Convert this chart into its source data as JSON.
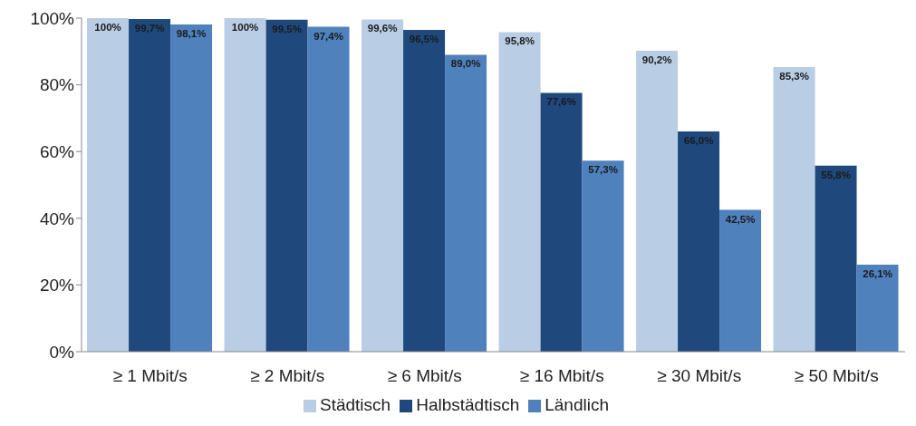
{
  "chart_data": {
    "type": "bar",
    "categories": [
      "≥ 1 Mbit/s",
      "≥ 2 Mbit/s",
      "≥ 6 Mbit/s",
      "≥ 16 Mbit/s",
      "≥ 30 Mbit/s",
      "≥ 50 Mbit/s"
    ],
    "series": [
      {
        "name": "Städtisch",
        "color": "#b9cde5",
        "values": [
          100,
          100,
          99.6,
          95.8,
          90.2,
          85.3
        ],
        "value_labels": [
          "100%",
          "100%",
          "99,6%",
          "95,8%",
          "90,2%",
          "85,3%"
        ]
      },
      {
        "name": "Halbstädtisch",
        "color": "#1f497d",
        "values": [
          99.7,
          99.5,
          96.5,
          77.6,
          66.0,
          55.8
        ],
        "value_labels": [
          "99,7%",
          "99,5%",
          "96,5%",
          "77,6%",
          "66,0%",
          "55,8%"
        ]
      },
      {
        "name": "Ländlich",
        "color": "#4f81bd",
        "values": [
          98.1,
          97.4,
          89.0,
          57.3,
          42.5,
          26.1
        ],
        "value_labels": [
          "98,1%",
          "97,4%",
          "89,0%",
          "57,3%",
          "42,5%",
          "26,1%"
        ]
      }
    ],
    "ylim": [
      0,
      100
    ],
    "yticks": [
      {
        "value": 0,
        "label": "0%"
      },
      {
        "value": 20,
        "label": "20%"
      },
      {
        "value": 40,
        "label": "40%"
      },
      {
        "value": 60,
        "label": "60%"
      },
      {
        "value": 80,
        "label": "80%"
      },
      {
        "value": 100,
        "label": "100%"
      }
    ],
    "grid": false,
    "legend": "bottom"
  }
}
